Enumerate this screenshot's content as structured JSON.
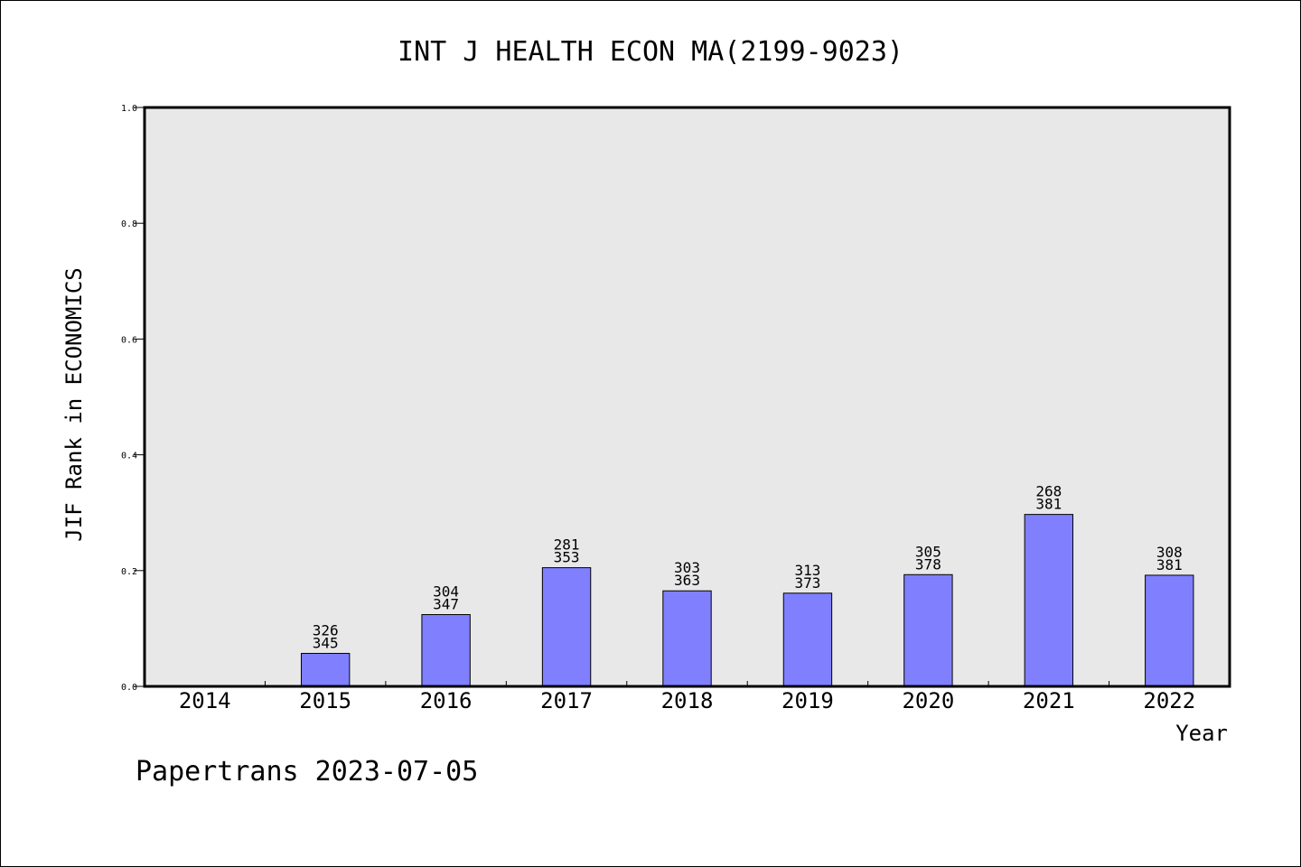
{
  "chart_data": {
    "type": "bar",
    "title": "INT J HEALTH ECON MA(2199-9023)",
    "xlabel": "Year",
    "ylabel": "JIF Rank in ECONOMICS",
    "ylim": [
      0,
      1.0
    ],
    "yticks": [
      "0.0",
      "0.2",
      "0.4",
      "0.6",
      "0.8",
      "1.0"
    ],
    "categories": [
      "2014",
      "2015",
      "2016",
      "2017",
      "2018",
      "2019",
      "2020",
      "2021",
      "2022"
    ],
    "values": [
      null,
      0.057,
      0.124,
      0.205,
      0.165,
      0.161,
      0.193,
      0.297,
      0.192
    ],
    "rank": [
      "",
      "326",
      "304",
      "281",
      "303",
      "313",
      "305",
      "268",
      "308"
    ],
    "total": [
      "",
      "345",
      "347",
      "353",
      "363",
      "373",
      "378",
      "381",
      "381"
    ],
    "grid": false,
    "legend": "none"
  },
  "footer": "Papertrans 2023-07-05",
  "colors": {
    "bar": "#8080ff",
    "plot_background": "#e8e8e8",
    "axis": "#000000"
  }
}
